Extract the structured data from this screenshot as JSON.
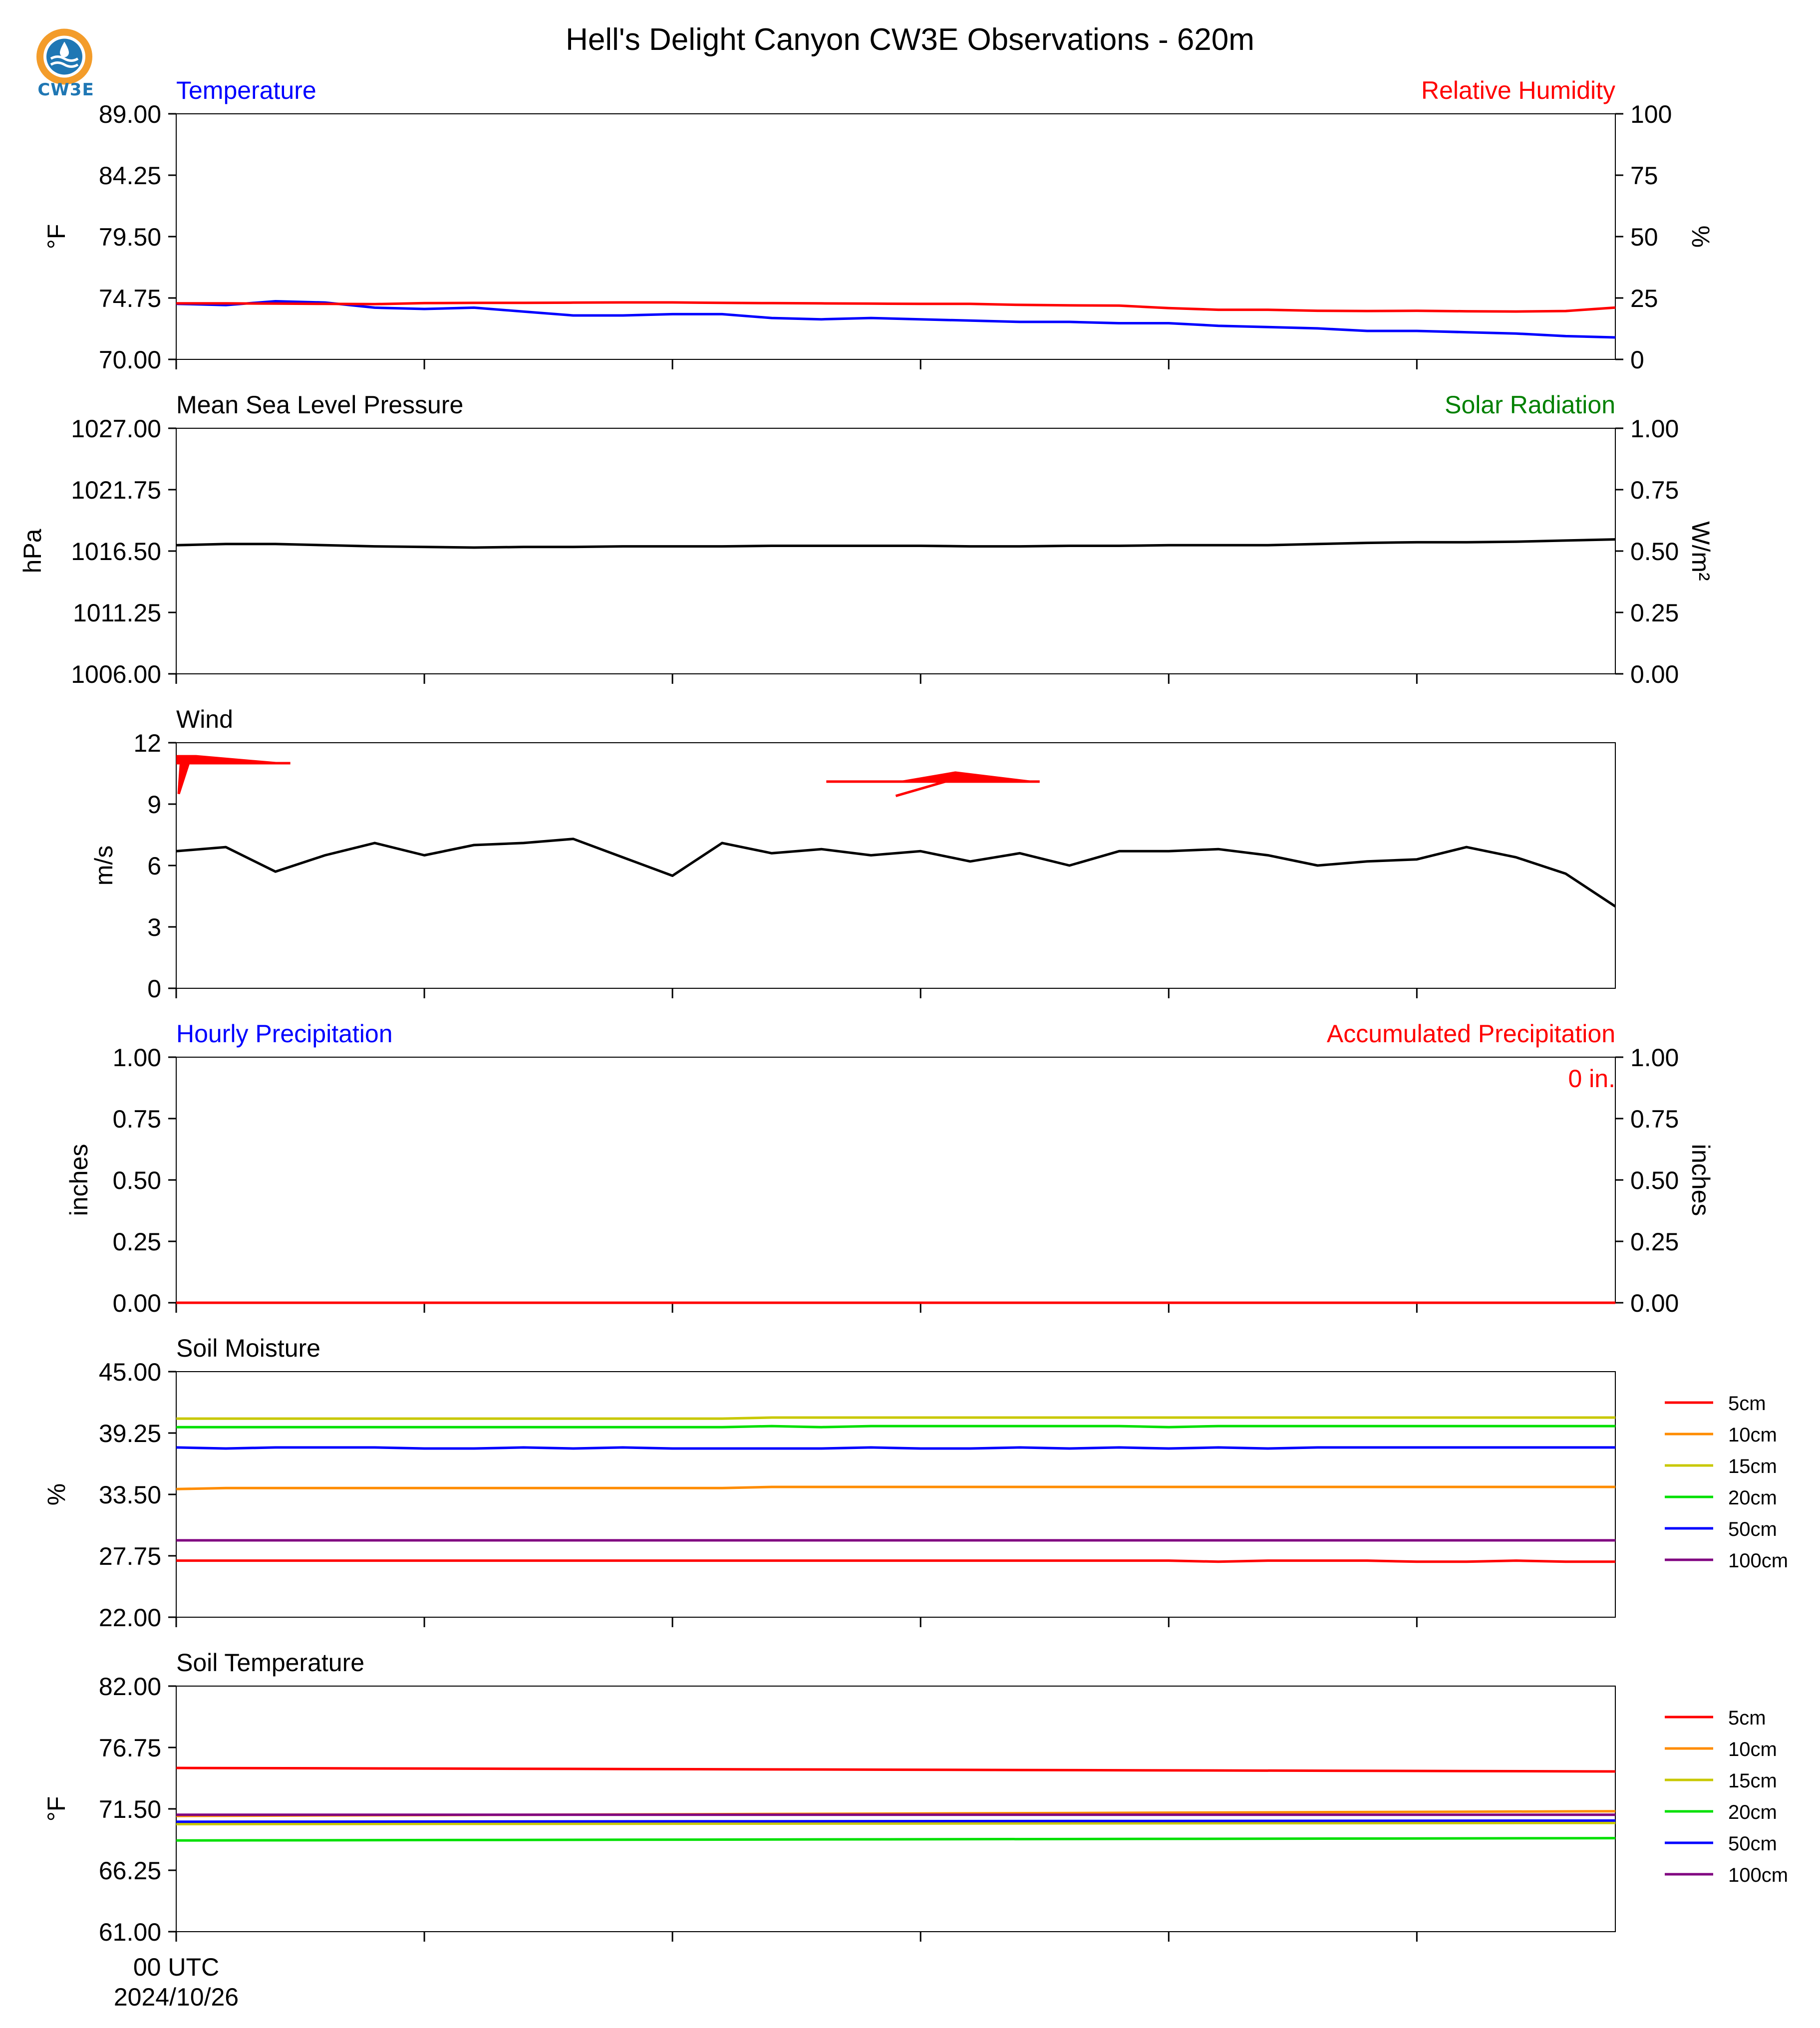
{
  "page": {
    "title": "Hell's Delight Canyon CW3E Observations - 620m",
    "logo_text": "CW3E",
    "x_axis": {
      "first_tick_label": "00 UTC",
      "first_tick_date": "2024/10/26",
      "ticks_hours": [
        0,
        5,
        10,
        15,
        20,
        25
      ]
    }
  },
  "colors": {
    "red": "#ff0000",
    "blue": "#0000ff",
    "green": "#008000",
    "black": "#000000",
    "soil": {
      "5cm": "#ff0000",
      "10cm": "#ff8c00",
      "15cm": "#c8c800",
      "20cm": "#00e000",
      "50cm": "#0000ff",
      "100cm": "#800080"
    }
  },
  "chart_data": [
    {
      "type": "line",
      "title_left": "Temperature",
      "title_right": "Relative Humidity",
      "ylabel": "°F",
      "ylabel_right": "%",
      "ylim": [
        70.0,
        89.0
      ],
      "yticks": [
        "89.00",
        "84.25",
        "79.50",
        "74.75",
        "70.00"
      ],
      "ylim_right": [
        0,
        100
      ],
      "yticks_right": [
        "100",
        "75",
        "50",
        "25",
        "0"
      ],
      "x_hours": [
        0,
        1,
        2,
        3,
        4,
        5,
        6,
        7,
        8,
        9,
        10,
        11,
        12,
        13,
        14,
        15,
        16,
        17,
        18,
        19,
        20,
        21,
        22,
        23,
        24,
        25,
        26,
        27,
        28,
        29
      ],
      "series": [
        {
          "name": "Temperature",
          "axis": "left",
          "color": "blue",
          "values": [
            74.3,
            74.2,
            74.5,
            74.4,
            74.0,
            73.9,
            74.0,
            73.7,
            73.4,
            73.4,
            73.5,
            73.5,
            73.2,
            73.1,
            73.2,
            73.1,
            73.0,
            72.9,
            72.9,
            72.8,
            72.8,
            72.6,
            72.5,
            72.4,
            72.2,
            72.2,
            72.1,
            72.0,
            71.8,
            71.7
          ]
        },
        {
          "name": "Relative Humidity",
          "axis": "right",
          "color": "red",
          "values": [
            22.8,
            22.8,
            22.7,
            22.6,
            22.5,
            22.9,
            23.0,
            23.0,
            23.1,
            23.2,
            23.2,
            23.0,
            22.9,
            22.8,
            22.7,
            22.6,
            22.6,
            22.2,
            22.0,
            21.9,
            20.9,
            20.2,
            20.2,
            19.8,
            19.7,
            19.8,
            19.6,
            19.5,
            19.7,
            21.1
          ]
        }
      ]
    },
    {
      "type": "line",
      "title_left": "Mean Sea Level Pressure",
      "title_right": "Solar Radiation",
      "ylabel": "hPa",
      "ylabel_right": "W/m²",
      "ylim": [
        1006.0,
        1027.0
      ],
      "yticks": [
        "1027.00",
        "1021.75",
        "1016.50",
        "1011.25",
        "1006.00"
      ],
      "ylim_right": [
        0.0,
        1.0
      ],
      "yticks_right": [
        "1.00",
        "0.75",
        "0.50",
        "0.25",
        "0.00"
      ],
      "x_hours": [
        0,
        1,
        2,
        3,
        4,
        5,
        6,
        7,
        8,
        9,
        10,
        11,
        12,
        13,
        14,
        15,
        16,
        17,
        18,
        19,
        20,
        21,
        22,
        23,
        24,
        25,
        26,
        27,
        28,
        29
      ],
      "series": [
        {
          "name": "Mean Sea Level Pressure",
          "axis": "left",
          "color": "black",
          "values": [
            1017.0,
            1017.1,
            1017.1,
            1017.0,
            1016.9,
            1016.85,
            1016.8,
            1016.85,
            1016.85,
            1016.9,
            1016.9,
            1016.9,
            1016.95,
            1016.95,
            1016.95,
            1016.95,
            1016.9,
            1016.9,
            1016.95,
            1016.95,
            1017.0,
            1017.0,
            1017.0,
            1017.1,
            1017.2,
            1017.25,
            1017.25,
            1017.3,
            1017.4,
            1017.5
          ]
        }
      ]
    },
    {
      "type": "line",
      "title_left": "Wind",
      "ylabel": "m/s",
      "ylim": [
        0,
        12
      ],
      "yticks": [
        "12",
        "9",
        "6",
        "3",
        "0"
      ],
      "x_hours": [
        0,
        1,
        2,
        3,
        4,
        5,
        6,
        7,
        8,
        9,
        10,
        11,
        12,
        13,
        14,
        15,
        16,
        17,
        18,
        19,
        20,
        21,
        22,
        23,
        24,
        25,
        26,
        27,
        28,
        29
      ],
      "series": [
        {
          "name": "Wind",
          "axis": "left",
          "color": "black",
          "values": [
            6.7,
            6.9,
            5.7,
            6.5,
            7.1,
            6.5,
            7.0,
            7.1,
            7.3,
            6.4,
            5.5,
            7.1,
            6.6,
            6.8,
            6.5,
            6.7,
            6.2,
            6.6,
            6.0,
            6.7,
            6.7,
            6.8,
            6.5,
            6.0,
            6.2,
            6.3,
            6.9,
            6.4,
            5.6,
            4.0
          ]
        }
      ],
      "wind_barbs": [
        {
          "hour": 0,
          "color": "red",
          "direction": "west-southwest"
        },
        {
          "hour": 15,
          "color": "red",
          "direction": "east-northeast"
        }
      ]
    },
    {
      "type": "line",
      "title_left": "Hourly Precipitation",
      "title_right": "Accumulated Precipitation",
      "ylabel": "inches",
      "ylabel_right": "inches",
      "ylim": [
        0.0,
        1.0
      ],
      "yticks": [
        "1.00",
        "0.75",
        "0.50",
        "0.25",
        "0.00"
      ],
      "ylim_right": [
        0.0,
        1.0
      ],
      "yticks_right": [
        "1.00",
        "0.75",
        "0.50",
        "0.25",
        "0.00"
      ],
      "annotation": "0 in.",
      "x_hours": [
        0,
        29
      ],
      "series": [
        {
          "name": "Hourly Precipitation",
          "axis": "left",
          "color": "blue",
          "values": [
            0,
            0
          ]
        },
        {
          "name": "Accumulated Precipitation",
          "axis": "right",
          "color": "red",
          "values": [
            0,
            0
          ]
        }
      ]
    },
    {
      "type": "line",
      "title_left": "Soil Moisture",
      "ylabel": "%",
      "ylim": [
        22.0,
        45.0
      ],
      "yticks": [
        "45.00",
        "39.25",
        "33.50",
        "27.75",
        "22.00"
      ],
      "legend": [
        "5cm",
        "10cm",
        "15cm",
        "20cm",
        "50cm",
        "100cm"
      ],
      "x_hours": [
        0,
        1,
        2,
        3,
        4,
        5,
        6,
        7,
        8,
        9,
        10,
        11,
        12,
        13,
        14,
        15,
        16,
        17,
        18,
        19,
        20,
        21,
        22,
        23,
        24,
        25,
        26,
        27,
        28,
        29
      ],
      "series": [
        {
          "name": "5cm",
          "values": [
            27.3,
            27.3,
            27.3,
            27.3,
            27.3,
            27.3,
            27.3,
            27.3,
            27.3,
            27.3,
            27.3,
            27.3,
            27.3,
            27.3,
            27.3,
            27.3,
            27.3,
            27.3,
            27.3,
            27.3,
            27.3,
            27.2,
            27.3,
            27.3,
            27.3,
            27.2,
            27.2,
            27.3,
            27.2,
            27.2
          ]
        },
        {
          "name": "10cm",
          "values": [
            34.0,
            34.1,
            34.1,
            34.1,
            34.1,
            34.1,
            34.1,
            34.1,
            34.1,
            34.1,
            34.1,
            34.1,
            34.2,
            34.2,
            34.2,
            34.2,
            34.2,
            34.2,
            34.2,
            34.2,
            34.2,
            34.2,
            34.2,
            34.2,
            34.2,
            34.2,
            34.2,
            34.2,
            34.2,
            34.2
          ]
        },
        {
          "name": "15cm",
          "values": [
            40.6,
            40.6,
            40.6,
            40.6,
            40.6,
            40.6,
            40.6,
            40.6,
            40.6,
            40.6,
            40.6,
            40.6,
            40.7,
            40.7,
            40.7,
            40.7,
            40.7,
            40.7,
            40.7,
            40.7,
            40.7,
            40.7,
            40.7,
            40.7,
            40.7,
            40.7,
            40.7,
            40.7,
            40.7,
            40.7
          ]
        },
        {
          "name": "20cm",
          "values": [
            39.8,
            39.8,
            39.8,
            39.8,
            39.8,
            39.8,
            39.8,
            39.8,
            39.8,
            39.8,
            39.8,
            39.8,
            39.9,
            39.8,
            39.9,
            39.9,
            39.9,
            39.9,
            39.9,
            39.9,
            39.8,
            39.9,
            39.9,
            39.9,
            39.9,
            39.9,
            39.9,
            39.9,
            39.9,
            39.9
          ]
        },
        {
          "name": "50cm",
          "values": [
            37.9,
            37.8,
            37.9,
            37.9,
            37.9,
            37.8,
            37.8,
            37.9,
            37.8,
            37.9,
            37.8,
            37.8,
            37.8,
            37.8,
            37.9,
            37.8,
            37.8,
            37.9,
            37.8,
            37.9,
            37.8,
            37.9,
            37.8,
            37.9,
            37.9,
            37.9,
            37.9,
            37.9,
            37.9,
            37.9
          ]
        },
        {
          "name": "100cm",
          "values": [
            29.2,
            29.2,
            29.2,
            29.2,
            29.2,
            29.2,
            29.2,
            29.2,
            29.2,
            29.2,
            29.2,
            29.2,
            29.2,
            29.2,
            29.2,
            29.2,
            29.2,
            29.2,
            29.2,
            29.2,
            29.2,
            29.2,
            29.2,
            29.2,
            29.2,
            29.2,
            29.2,
            29.2,
            29.2,
            29.2
          ]
        }
      ]
    },
    {
      "type": "line",
      "title_left": "Soil Temperature",
      "ylabel": "°F",
      "ylim": [
        61.0,
        82.0
      ],
      "yticks": [
        "82.00",
        "76.75",
        "71.50",
        "66.25",
        "61.00"
      ],
      "legend": [
        "5cm",
        "10cm",
        "15cm",
        "20cm",
        "50cm",
        "100cm"
      ],
      "x_hours": [
        0,
        29
      ],
      "series": [
        {
          "name": "5cm",
          "values": [
            75.0,
            74.7
          ]
        },
        {
          "name": "10cm",
          "values": [
            70.9,
            71.3
          ]
        },
        {
          "name": "15cm",
          "values": [
            70.2,
            70.3
          ]
        },
        {
          "name": "20cm",
          "values": [
            68.8,
            69.0
          ]
        },
        {
          "name": "50cm",
          "values": [
            70.4,
            70.5
          ]
        },
        {
          "name": "100cm",
          "values": [
            71.0,
            71.0
          ]
        }
      ]
    }
  ]
}
